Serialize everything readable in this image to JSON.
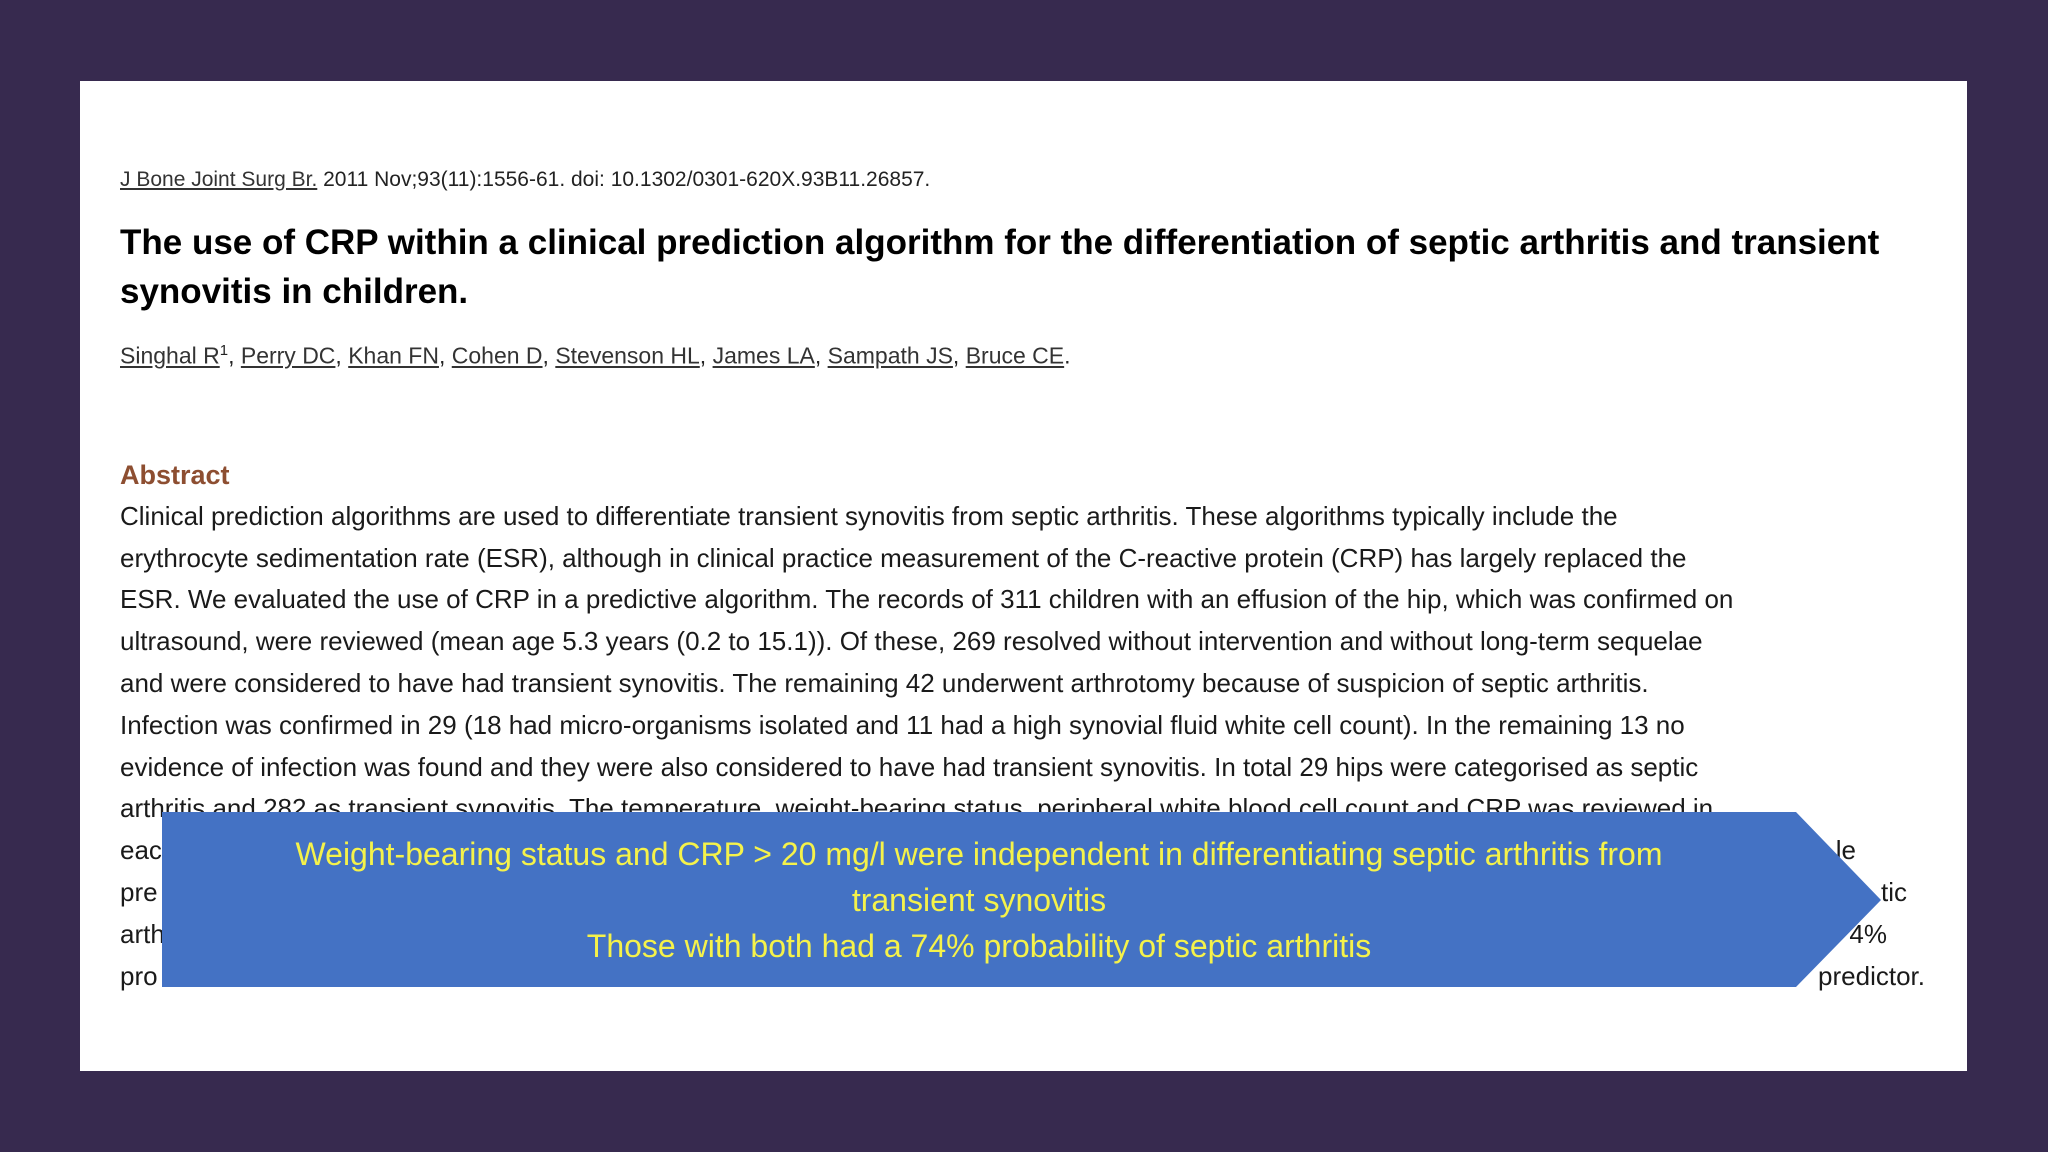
{
  "citation": {
    "journal": "J Bone Joint Surg Br.",
    "details": " 2011 Nov;93(11):1556-61. doi: 10.1302/0301-620X.93B11.26857."
  },
  "title": "The use of CRP within a clinical prediction algorithm for the differentiation of septic arthritis and transient synovitis in children.",
  "authors": [
    {
      "name": "Singhal R",
      "affiliation": "1",
      "after": ", "
    },
    {
      "name": "Perry DC",
      "after": ", "
    },
    {
      "name": "Khan FN",
      "after": ", "
    },
    {
      "name": "Cohen D",
      "after": ", "
    },
    {
      "name": "Stevenson HL",
      "after": ", "
    },
    {
      "name": "James LA",
      "after": ", "
    },
    {
      "name": "Sampath JS",
      "after": ", "
    },
    {
      "name": "Bruce CE",
      "after": "."
    }
  ],
  "abstract": {
    "heading": "Abstract",
    "lines": [
      "Clinical prediction algorithms are used to differentiate transient synovitis from septic arthritis. These algorithms typically include the",
      "erythrocyte sedimentation rate (ESR), although in clinical practice measurement of the C-reactive protein (CRP) has largely replaced the",
      "ESR. We evaluated the use of CRP in a predictive algorithm. The records of 311 children with an effusion of the hip, which was confirmed on",
      "ultrasound, were reviewed (mean age 5.3 years (0.2 to 15.1)). Of these, 269 resolved without intervention and without long-term sequelae",
      "and were considered to have had transient synovitis. The remaining 42 underwent arthrotomy because of suspicion of septic arthritis.",
      "Infection was confirmed in 29 (18 had micro-organisms isolated and 11 had a high synovial fluid white cell count). In the remaining 13 no",
      "evidence of infection was found and they were also considered to have had transient synovitis. In total 29 hips were categorised as septic",
      "arthritis and 282 as transient synovitis. The temperature, weight-bearing status, peripheral white blood cell count and CRP was reviewed in"
    ],
    "fragments": [
      {
        "left": "eac",
        "right": "le"
      },
      {
        "left": "pre",
        "right": "tic"
      },
      {
        "left": "arth",
        "right": "4%"
      },
      {
        "left": "pro",
        "right": "predictor."
      }
    ]
  },
  "callout": {
    "lines": [
      "Weight-bearing status and CRP > 20 mg/l were independent in differentiating septic arthritis from",
      "transient synovitis",
      "Those with both had a 74% probability of septic arthritis"
    ]
  }
}
